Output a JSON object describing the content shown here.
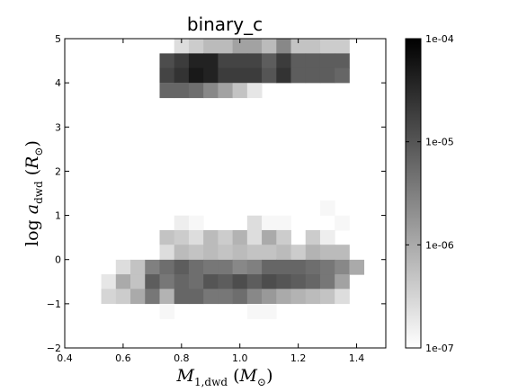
{
  "chart_data": {
    "type": "heatmap",
    "title": "binary_c",
    "xlabel": "M_1,dwd (M_⊙)",
    "ylabel": "log a_dwd (R_⊙)",
    "xlim": [
      0.4,
      1.5
    ],
    "ylim": [
      -2,
      5
    ],
    "x_ticks": [
      "0.4",
      "0.6",
      "0.8",
      "1.0",
      "1.2",
      "1.4"
    ],
    "y_ticks": [
      "−2",
      "−1",
      "0",
      "1",
      "2",
      "3",
      "4",
      "5"
    ],
    "colorbar": {
      "scale": "log",
      "range": [
        1e-07,
        0.0001
      ],
      "tick_labels": [
        "1e-07",
        "1e-06",
        "1e-05",
        "1e-04"
      ],
      "colors": [
        "#ffffff",
        "#000000"
      ]
    },
    "cell_size": {
      "x": 0.05,
      "y": 0.3333
    },
    "cells": [
      {
        "x": 0.8,
        "y": 4.83,
        "v": -6.6
      },
      {
        "x": 0.85,
        "y": 4.83,
        "v": -6.4
      },
      {
        "x": 0.9,
        "y": 4.83,
        "v": -6.2
      },
      {
        "x": 0.95,
        "y": 4.83,
        "v": -6.2
      },
      {
        "x": 1.0,
        "y": 4.83,
        "v": -5.9
      },
      {
        "x": 1.05,
        "y": 4.83,
        "v": -5.9
      },
      {
        "x": 1.1,
        "y": 4.83,
        "v": -6.2
      },
      {
        "x": 1.15,
        "y": 4.83,
        "v": -5.6
      },
      {
        "x": 1.2,
        "y": 4.83,
        "v": -6.3
      },
      {
        "x": 1.25,
        "y": 4.83,
        "v": -6.3
      },
      {
        "x": 1.3,
        "y": 4.83,
        "v": -6.4
      },
      {
        "x": 1.35,
        "y": 4.83,
        "v": -6.4
      },
      {
        "x": 0.75,
        "y": 4.5,
        "v": -4.9
      },
      {
        "x": 0.8,
        "y": 4.5,
        "v": -4.7
      },
      {
        "x": 0.85,
        "y": 4.5,
        "v": -4.4
      },
      {
        "x": 0.9,
        "y": 4.5,
        "v": -4.4
      },
      {
        "x": 0.95,
        "y": 4.5,
        "v": -4.8
      },
      {
        "x": 1.0,
        "y": 4.5,
        "v": -4.8
      },
      {
        "x": 1.05,
        "y": 4.5,
        "v": -4.8
      },
      {
        "x": 1.1,
        "y": 4.5,
        "v": -5.1
      },
      {
        "x": 1.15,
        "y": 4.5,
        "v": -4.7
      },
      {
        "x": 1.2,
        "y": 4.5,
        "v": -5.1
      },
      {
        "x": 1.25,
        "y": 4.5,
        "v": -5.1
      },
      {
        "x": 1.3,
        "y": 4.5,
        "v": -5.1
      },
      {
        "x": 1.35,
        "y": 4.5,
        "v": -5.1
      },
      {
        "x": 0.75,
        "y": 4.17,
        "v": -4.8
      },
      {
        "x": 0.8,
        "y": 4.17,
        "v": -4.6
      },
      {
        "x": 0.85,
        "y": 4.17,
        "v": -4.3
      },
      {
        "x": 0.9,
        "y": 4.17,
        "v": -4.4
      },
      {
        "x": 0.95,
        "y": 4.17,
        "v": -4.7
      },
      {
        "x": 1.0,
        "y": 4.17,
        "v": -4.7
      },
      {
        "x": 1.05,
        "y": 4.17,
        "v": -4.7
      },
      {
        "x": 1.1,
        "y": 4.17,
        "v": -5.0
      },
      {
        "x": 1.15,
        "y": 4.17,
        "v": -4.6
      },
      {
        "x": 1.2,
        "y": 4.17,
        "v": -5.1
      },
      {
        "x": 1.25,
        "y": 4.17,
        "v": -5.1
      },
      {
        "x": 1.3,
        "y": 4.17,
        "v": -5.1
      },
      {
        "x": 1.35,
        "y": 4.17,
        "v": -5.2
      },
      {
        "x": 0.75,
        "y": 3.83,
        "v": -5.2
      },
      {
        "x": 0.8,
        "y": 3.83,
        "v": -5.2
      },
      {
        "x": 0.85,
        "y": 3.83,
        "v": -5.3
      },
      {
        "x": 0.9,
        "y": 3.83,
        "v": -5.6
      },
      {
        "x": 0.95,
        "y": 3.83,
        "v": -5.9
      },
      {
        "x": 1.0,
        "y": 3.83,
        "v": -6.3
      },
      {
        "x": 1.05,
        "y": 3.83,
        "v": -6.7
      },
      {
        "x": 1.3,
        "y": 1.17,
        "v": -6.9
      },
      {
        "x": 0.8,
        "y": 0.83,
        "v": -6.8
      },
      {
        "x": 0.85,
        "y": 0.83,
        "v": -6.9
      },
      {
        "x": 1.05,
        "y": 0.83,
        "v": -6.6
      },
      {
        "x": 1.1,
        "y": 0.83,
        "v": -6.9
      },
      {
        "x": 1.15,
        "y": 0.83,
        "v": -6.9
      },
      {
        "x": 1.35,
        "y": 0.83,
        "v": -6.9
      },
      {
        "x": 0.75,
        "y": 0.5,
        "v": -6.3
      },
      {
        "x": 0.8,
        "y": 0.5,
        "v": -6.4
      },
      {
        "x": 0.85,
        "y": 0.5,
        "v": -6.6
      },
      {
        "x": 0.9,
        "y": 0.5,
        "v": -6.2
      },
      {
        "x": 0.95,
        "y": 0.5,
        "v": -6.4
      },
      {
        "x": 1.0,
        "y": 0.5,
        "v": -6.1
      },
      {
        "x": 1.05,
        "y": 0.5,
        "v": -6.6
      },
      {
        "x": 1.1,
        "y": 0.5,
        "v": -6.0
      },
      {
        "x": 1.15,
        "y": 0.5,
        "v": -6.4
      },
      {
        "x": 1.25,
        "y": 0.5,
        "v": -6.4
      },
      {
        "x": 1.3,
        "y": 0.5,
        "v": -6.8
      },
      {
        "x": 0.75,
        "y": 0.17,
        "v": -6.6
      },
      {
        "x": 0.8,
        "y": 0.17,
        "v": -6.2
      },
      {
        "x": 0.85,
        "y": 0.17,
        "v": -6.3
      },
      {
        "x": 0.9,
        "y": 0.17,
        "v": -6.2
      },
      {
        "x": 0.95,
        "y": 0.17,
        "v": -6.3
      },
      {
        "x": 1.0,
        "y": 0.17,
        "v": -6.2
      },
      {
        "x": 1.05,
        "y": 0.17,
        "v": -6.3
      },
      {
        "x": 1.1,
        "y": 0.17,
        "v": -6.3
      },
      {
        "x": 1.15,
        "y": 0.17,
        "v": -6.2
      },
      {
        "x": 1.2,
        "y": 0.17,
        "v": -6.4
      },
      {
        "x": 1.25,
        "y": 0.17,
        "v": -6.1
      },
      {
        "x": 1.3,
        "y": 0.17,
        "v": -6.2
      },
      {
        "x": 1.35,
        "y": 0.17,
        "v": -6.2
      },
      {
        "x": 0.6,
        "y": -0.17,
        "v": -6.6
      },
      {
        "x": 0.65,
        "y": -0.17,
        "v": -6.3
      },
      {
        "x": 0.7,
        "y": -0.17,
        "v": -5.5
      },
      {
        "x": 0.75,
        "y": -0.17,
        "v": -5.3
      },
      {
        "x": 0.8,
        "y": -0.17,
        "v": -5.1
      },
      {
        "x": 0.85,
        "y": -0.17,
        "v": -5.3
      },
      {
        "x": 0.9,
        "y": -0.17,
        "v": -5.4
      },
      {
        "x": 0.95,
        "y": -0.17,
        "v": -5.4
      },
      {
        "x": 1.0,
        "y": -0.17,
        "v": -5.6
      },
      {
        "x": 1.05,
        "y": -0.17,
        "v": -5.5
      },
      {
        "x": 1.1,
        "y": -0.17,
        "v": -5.2
      },
      {
        "x": 1.15,
        "y": -0.17,
        "v": -5.2
      },
      {
        "x": 1.2,
        "y": -0.17,
        "v": -5.2
      },
      {
        "x": 1.25,
        "y": -0.17,
        "v": -5.3
      },
      {
        "x": 1.3,
        "y": -0.17,
        "v": -5.4
      },
      {
        "x": 1.35,
        "y": -0.17,
        "v": -5.6
      },
      {
        "x": 1.4,
        "y": -0.17,
        "v": -6.0
      },
      {
        "x": 0.55,
        "y": -0.5,
        "v": -6.7
      },
      {
        "x": 0.6,
        "y": -0.5,
        "v": -6.0
      },
      {
        "x": 0.65,
        "y": -0.5,
        "v": -6.3
      },
      {
        "x": 0.7,
        "y": -0.5,
        "v": -5.1
      },
      {
        "x": 0.75,
        "y": -0.5,
        "v": -5.4
      },
      {
        "x": 0.8,
        "y": -0.5,
        "v": -5.2
      },
      {
        "x": 0.85,
        "y": -0.5,
        "v": -5.3
      },
      {
        "x": 0.9,
        "y": -0.5,
        "v": -5.0
      },
      {
        "x": 0.95,
        "y": -0.5,
        "v": -5.1
      },
      {
        "x": 1.0,
        "y": -0.5,
        "v": -4.9
      },
      {
        "x": 1.05,
        "y": -0.5,
        "v": -5.1
      },
      {
        "x": 1.1,
        "y": -0.5,
        "v": -4.9
      },
      {
        "x": 1.15,
        "y": -0.5,
        "v": -5.0
      },
      {
        "x": 1.2,
        "y": -0.5,
        "v": -5.1
      },
      {
        "x": 1.25,
        "y": -0.5,
        "v": -5.2
      },
      {
        "x": 1.3,
        "y": -0.5,
        "v": -5.4
      },
      {
        "x": 1.35,
        "y": -0.5,
        "v": -5.9
      },
      {
        "x": 0.55,
        "y": -0.83,
        "v": -6.5
      },
      {
        "x": 0.6,
        "y": -0.83,
        "v": -6.4
      },
      {
        "x": 0.65,
        "y": -0.83,
        "v": -6.0
      },
      {
        "x": 0.7,
        "y": -0.83,
        "v": -5.4
      },
      {
        "x": 0.75,
        "y": -0.83,
        "v": -6.1
      },
      {
        "x": 0.8,
        "y": -0.83,
        "v": -5.2
      },
      {
        "x": 0.85,
        "y": -0.83,
        "v": -5.2
      },
      {
        "x": 0.9,
        "y": -0.83,
        "v": -5.4
      },
      {
        "x": 0.95,
        "y": -0.83,
        "v": -5.4
      },
      {
        "x": 1.0,
        "y": -0.83,
        "v": -5.3
      },
      {
        "x": 1.05,
        "y": -0.83,
        "v": -5.6
      },
      {
        "x": 1.1,
        "y": -0.83,
        "v": -5.8
      },
      {
        "x": 1.15,
        "y": -0.83,
        "v": -6.0
      },
      {
        "x": 1.2,
        "y": -0.83,
        "v": -6.1
      },
      {
        "x": 1.25,
        "y": -0.83,
        "v": -6.2
      },
      {
        "x": 1.3,
        "y": -0.83,
        "v": -6.3
      },
      {
        "x": 1.35,
        "y": -0.83,
        "v": -6.6
      },
      {
        "x": 0.75,
        "y": -1.17,
        "v": -6.9
      },
      {
        "x": 1.05,
        "y": -1.17,
        "v": -6.9
      },
      {
        "x": 1.1,
        "y": -1.17,
        "v": -6.9
      }
    ]
  }
}
